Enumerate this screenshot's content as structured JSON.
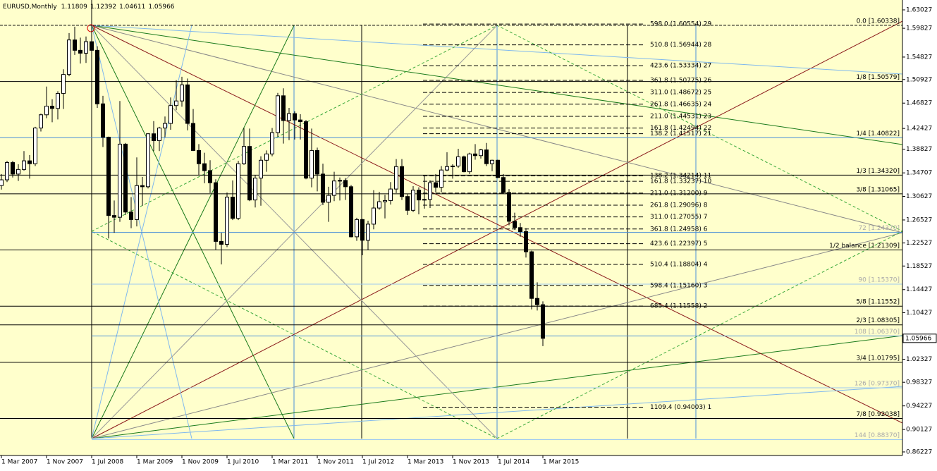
{
  "chart_data": {
    "type": "candlestick",
    "title": "EURUSD,Monthly",
    "categories": [
      "1 Mar 2007",
      null,
      null,
      null,
      null,
      null,
      null,
      null,
      "1 Nov 2007",
      null,
      null,
      null,
      null,
      null,
      null,
      null,
      "1 Jul 2008",
      null,
      null,
      null,
      null,
      null,
      null,
      null,
      "1 Mar 2009",
      null,
      null,
      null,
      null,
      null,
      null,
      null,
      "1 Nov 2009",
      null,
      null,
      null,
      null,
      null,
      null,
      null,
      "1 Jul 2010",
      null,
      null,
      null,
      null,
      null,
      null,
      null,
      "1 Mar 2011",
      null,
      null,
      null,
      null,
      null,
      null,
      null,
      "1 Nov 2011",
      null,
      null,
      null,
      null,
      null,
      null,
      null,
      "1 Jul 2012",
      null,
      null,
      null,
      null,
      null,
      null,
      null,
      "1 Mar 2013",
      null,
      null,
      null,
      null,
      null,
      null,
      null,
      "1 Nov 2013",
      null,
      null,
      null,
      null,
      null,
      null,
      null,
      "1 Jul 2014",
      null,
      null,
      null,
      null,
      null,
      null,
      null,
      "1 Mar 2015"
    ],
    "open": [
      1.325,
      1.335,
      1.365,
      1.345,
      1.353,
      1.368,
      1.363,
      1.425,
      1.448,
      1.463,
      1.459,
      1.485,
      1.518,
      1.578,
      1.56,
      1.555,
      1.575,
      1.56,
      1.467,
      1.409,
      1.273,
      1.27,
      1.397,
      1.279,
      1.266,
      1.325,
      1.323,
      1.415,
      1.403,
      1.425,
      1.433,
      1.464,
      1.472,
      1.5,
      1.433,
      1.386,
      1.363,
      1.351,
      1.33,
      1.228,
      1.223,
      1.305,
      1.268,
      1.363,
      1.393,
      1.3,
      1.338,
      1.369,
      1.38,
      1.417,
      1.481,
      1.438,
      1.45,
      1.439,
      1.436,
      1.338,
      1.386,
      1.345,
      1.296,
      1.308,
      1.333,
      1.334,
      1.323,
      1.236,
      1.266,
      1.23,
      1.258,
      1.286,
      1.297,
      1.299,
      1.319,
      1.358,
      1.306,
      1.282,
      1.317,
      1.3,
      1.301,
      1.33,
      1.322,
      1.352,
      1.358,
      1.359,
      1.375,
      1.349,
      1.38,
      1.377,
      1.387,
      1.363,
      1.369,
      1.339,
      1.313,
      1.263,
      1.252,
      1.245,
      1.21,
      1.129,
      1.11809
    ],
    "high": [
      1.345,
      1.368,
      1.368,
      1.362,
      1.385,
      1.378,
      1.427,
      1.45,
      1.497,
      1.475,
      1.489,
      1.527,
      1.59,
      1.601,
      1.582,
      1.584,
      1.6038,
      1.567,
      1.481,
      1.41,
      1.299,
      1.472,
      1.399,
      1.305,
      1.374,
      1.34,
      1.416,
      1.437,
      1.427,
      1.445,
      1.478,
      1.508,
      1.514,
      1.511,
      1.458,
      1.397,
      1.382,
      1.369,
      1.336,
      1.243,
      1.313,
      1.334,
      1.368,
      1.425,
      1.424,
      1.343,
      1.376,
      1.386,
      1.425,
      1.486,
      1.494,
      1.46,
      1.454,
      1.449,
      1.439,
      1.424,
      1.391,
      1.363,
      1.323,
      1.349,
      1.339,
      1.338,
      1.326,
      1.269,
      1.267,
      1.264,
      1.317,
      1.314,
      1.309,
      1.331,
      1.371,
      1.371,
      1.31,
      1.324,
      1.322,
      1.342,
      1.334,
      1.345,
      1.359,
      1.383,
      1.362,
      1.389,
      1.377,
      1.382,
      1.397,
      1.389,
      1.399,
      1.37,
      1.37,
      1.345,
      1.319,
      1.278,
      1.26,
      1.251,
      1.212,
      1.157,
      1.12392
    ],
    "low": [
      1.318,
      1.331,
      1.339,
      1.333,
      1.351,
      1.337,
      1.359,
      1.419,
      1.442,
      1.435,
      1.44,
      1.458,
      1.515,
      1.552,
      1.537,
      1.538,
      1.555,
      1.46,
      1.392,
      1.233,
      1.243,
      1.262,
      1.274,
      1.251,
      1.254,
      1.29,
      1.32,
      1.385,
      1.385,
      1.409,
      1.422,
      1.456,
      1.462,
      1.421,
      1.385,
      1.343,
      1.329,
      1.312,
      1.214,
      1.188,
      1.218,
      1.265,
      1.265,
      1.361,
      1.298,
      1.287,
      1.29,
      1.349,
      1.376,
      1.41,
      1.398,
      1.404,
      1.405,
      1.405,
      1.336,
      1.322,
      1.315,
      1.291,
      1.262,
      1.298,
      1.299,
      1.3,
      1.235,
      1.229,
      1.204,
      1.213,
      1.249,
      1.283,
      1.268,
      1.292,
      1.312,
      1.3,
      1.274,
      1.279,
      1.275,
      1.285,
      1.286,
      1.313,
      1.313,
      1.35,
      1.337,
      1.356,
      1.348,
      1.345,
      1.37,
      1.372,
      1.359,
      1.35,
      1.338,
      1.311,
      1.256,
      1.248,
      1.236,
      1.2,
      1.11,
      1.108,
      1.04611
    ],
    "close": [
      1.335,
      1.365,
      1.345,
      1.353,
      1.368,
      1.363,
      1.425,
      1.448,
      1.463,
      1.459,
      1.485,
      1.518,
      1.578,
      1.56,
      1.555,
      1.575,
      1.56,
      1.467,
      1.409,
      1.273,
      1.27,
      1.397,
      1.279,
      1.266,
      1.325,
      1.323,
      1.415,
      1.403,
      1.425,
      1.433,
      1.464,
      1.472,
      1.5,
      1.433,
      1.386,
      1.363,
      1.351,
      1.33,
      1.228,
      1.223,
      1.305,
      1.268,
      1.363,
      1.393,
      1.3,
      1.338,
      1.369,
      1.38,
      1.417,
      1.481,
      1.438,
      1.45,
      1.439,
      1.436,
      1.338,
      1.386,
      1.345,
      1.296,
      1.308,
      1.333,
      1.334,
      1.323,
      1.236,
      1.266,
      1.23,
      1.258,
      1.286,
      1.297,
      1.299,
      1.319,
      1.358,
      1.306,
      1.282,
      1.317,
      1.3,
      1.301,
      1.33,
      1.322,
      1.352,
      1.358,
      1.359,
      1.375,
      1.349,
      1.38,
      1.377,
      1.387,
      1.363,
      1.369,
      1.339,
      1.313,
      1.263,
      1.252,
      1.245,
      1.21,
      1.129,
      1.11809,
      1.05966
    ],
    "ylim": [
      0.8561,
      1.6474
    ],
    "yticks": [
      1.63027,
      1.59827,
      1.54827,
      1.50927,
      1.46827,
      1.42427,
      1.38827,
      1.34707,
      1.30627,
      1.26527,
      1.22527,
      1.18527,
      1.14427,
      1.10427,
      1.02327,
      0.98327,
      0.94227,
      0.90127,
      0.86227
    ],
    "levels": [
      {
        "label": "0.0  [1.60338]",
        "price": 1.60338,
        "color": "#000000"
      },
      {
        "label": "1/8  [1.50579]",
        "price": 1.50579,
        "color": "#000000"
      },
      {
        "label": "1/4  [1.40822]",
        "price": 1.40822,
        "color": "#4a8fd8"
      },
      {
        "label": "1/3  [1.34320]",
        "price": 1.3432,
        "color": "#000000"
      },
      {
        "label": "3/8  [1.31065]",
        "price": 1.31065,
        "color": "#000000"
      },
      {
        "label": "1/2 balance  [1.21309]",
        "price": 1.21309,
        "color": "#000000"
      },
      {
        "label": "5/8  [1.11552]",
        "price": 1.11552,
        "color": "#000000"
      },
      {
        "label": "2/3  [1.08305]",
        "price": 1.08305,
        "color": "#000000"
      },
      {
        "label": "3/4  [1.01795]",
        "price": 1.01795,
        "color": "#000000"
      },
      {
        "label": "7/8  [0.92038]",
        "price": 0.92038,
        "color": "#000000"
      }
    ],
    "gann_levels": [
      {
        "label": "72  [1.24370]",
        "price": 1.2437,
        "color": "#4a8fd8"
      },
      {
        "label": "90  [1.15370]",
        "price": 1.1537,
        "color": "#9ec9f0"
      },
      {
        "label": "108  [1.06370]",
        "price": 1.0637,
        "color": "#4a8fd8"
      },
      {
        "label": "126  [0.97370]",
        "price": 0.9737,
        "color": "#9ec9f0"
      },
      {
        "label": "144  [0.88370]",
        "price": 0.8837,
        "color": "#9ec9f0"
      }
    ],
    "fib_levels": [
      {
        "label": "598.0 (1.60554) 29",
        "price": 1.60554
      },
      {
        "label": "510.8 (1.56944) 28",
        "price": 1.56944
      },
      {
        "label": "423.6 (1.53334) 27",
        "price": 1.53334
      },
      {
        "label": "361.8 (1.50775) 26",
        "price": 1.50775
      },
      {
        "label": "311.0 (1.48672) 25",
        "price": 1.48672
      },
      {
        "label": "261.8 (1.46635) 24",
        "price": 1.46635
      },
      {
        "label": "211.0 (1.44531) 23",
        "price": 1.44531
      },
      {
        "label": "161.8 (1.42494) 22",
        "price": 1.42494
      },
      {
        "label": "138.2 (1.41517) 21",
        "price": 1.41517
      },
      {
        "label": "138.2 (1.34214) 11",
        "price": 1.34214
      },
      {
        "label": "161.8 (1.33237) 10",
        "price": 1.33237
      },
      {
        "label": "211.0 (1.31200) 9",
        "price": 1.312
      },
      {
        "label": "261.8 (1.29096) 8",
        "price": 1.29096
      },
      {
        "label": "311.0 (1.27055) 7",
        "price": 1.27055
      },
      {
        "label": "361.8 (1.24958) 6",
        "price": 1.24958
      },
      {
        "label": "423.6 (1.22397) 5",
        "price": 1.22397
      },
      {
        "label": "510.4 (1.18804) 4",
        "price": 1.18804
      },
      {
        "label": "598.4 (1.15160) 3",
        "price": 1.1516
      },
      {
        "label": "685.4 (1.11558) 2",
        "price": 1.11558
      },
      {
        "label": "1109.4 (0.94003) 1",
        "price": 0.94003
      }
    ],
    "background": "#ffffcc",
    "bull_color": "#ffffff",
    "bear_color": "#000000"
  }
}
